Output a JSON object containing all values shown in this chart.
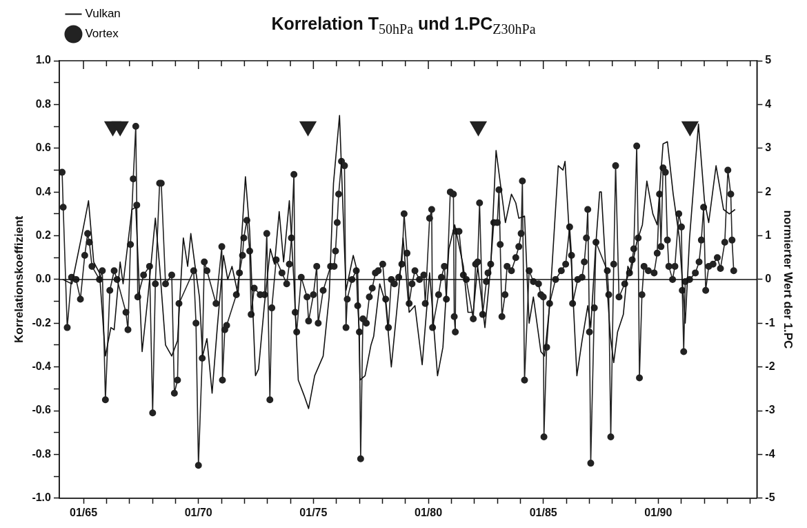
{
  "chart_data": {
    "type": "line",
    "title": "Korrelation T$_{50hPa}$ und 1.PC$_{Z30hPa}$",
    "ylabel": "Korrelationskoeffizient",
    "y2label": "normierter Wert der 1.PC",
    "xlim": [
      "1963-12-13",
      "1994-04-17"
    ],
    "xticks": [
      {
        "value": "1965-01",
        "label": "01/65"
      },
      {
        "value": "1966-01",
        "label": null
      },
      {
        "value": "1967-01",
        "label": null
      },
      {
        "value": "1968-01",
        "label": null
      },
      {
        "value": "1969-01",
        "label": null
      },
      {
        "value": "1970-01",
        "label": "01/70"
      },
      {
        "value": "1971-01",
        "label": null
      },
      {
        "value": "1972-01",
        "label": null
      },
      {
        "value": "1973-01",
        "label": null
      },
      {
        "value": "1974-01",
        "label": null
      },
      {
        "value": "1975-01",
        "label": "01/75"
      },
      {
        "value": "1976-01",
        "label": null
      },
      {
        "value": "1977-01",
        "label": null
      },
      {
        "value": "1978-01",
        "label": null
      },
      {
        "value": "1979-01",
        "label": null
      },
      {
        "value": "1980-01",
        "label": "01/80"
      },
      {
        "value": "1981-01",
        "label": null
      },
      {
        "value": "1982-01",
        "label": null
      },
      {
        "value": "1983-01",
        "label": null
      },
      {
        "value": "1984-01",
        "label": null
      },
      {
        "value": "1985-01",
        "label": "01/85"
      },
      {
        "value": "1986-01",
        "label": null
      },
      {
        "value": "1987-01",
        "label": null
      },
      {
        "value": "1988-01",
        "label": null
      },
      {
        "value": "1989-01",
        "label": null
      },
      {
        "value": "1990-01",
        "label": "01/90"
      },
      {
        "value": "1991-01",
        "label": null
      },
      {
        "value": "1992-01",
        "label": null
      },
      {
        "value": "1993-01",
        "label": null
      },
      {
        "value": "1994-01",
        "label": null
      }
    ],
    "ylim": [
      -1,
      1
    ],
    "yticks": [
      {
        "value": -1,
        "label": "-1.0"
      },
      {
        "value": -0.9,
        "label": null
      },
      {
        "value": -0.8,
        "label": "-0.8"
      },
      {
        "value": -0.7,
        "label": null
      },
      {
        "value": -0.6,
        "label": "-0.6"
      },
      {
        "value": -0.5,
        "label": null
      },
      {
        "value": -0.4,
        "label": "-0.4"
      },
      {
        "value": -0.3,
        "label": null
      },
      {
        "value": -0.2,
        "label": "-0.2"
      },
      {
        "value": -0.1,
        "label": null
      },
      {
        "value": 0,
        "label": "0.0"
      },
      {
        "value": 0.1,
        "label": null
      },
      {
        "value": 0.2,
        "label": "0.2"
      },
      {
        "value": 0.3,
        "label": null
      },
      {
        "value": 0.4,
        "label": "0.4"
      },
      {
        "value": 0.5,
        "label": null
      },
      {
        "value": 0.6,
        "label": "0.6"
      },
      {
        "value": 0.7,
        "label": null
      },
      {
        "value": 0.8,
        "label": "0.8"
      },
      {
        "value": 0.9,
        "label": null
      },
      {
        "value": 1,
        "label": "1.0"
      }
    ],
    "y2lim": [
      -5,
      5
    ],
    "y2ticks": [
      -5,
      -4,
      -3,
      -2,
      -1,
      0,
      1,
      2,
      3,
      4,
      5
    ],
    "legend": "top left",
    "ref_lines": [
      {
        "axis": "y",
        "value": 0
      }
    ],
    "series": [
      {
        "name": "Vulkan",
        "color": "#111111",
        "marker": "none",
        "x": [
          "1964-02-06",
          "1964-07-01",
          "1965-01-01",
          "1965-03-22",
          "1965-06-12",
          "1965-09-12",
          "1965-12-15",
          "1966-03-12",
          "1966-05-03",
          "1966-08-06",
          "1966-09-22",
          "1967-02-09",
          "1967-04-11",
          "1967-07-21",
          "1967-10-21",
          "1968-02-16",
          "1968-04-24",
          "1968-07-27",
          "1968-11-03",
          "1969-02-03",
          "1969-05-06",
          "1969-07-14",
          "1969-09-02",
          "1969-11-09",
          "1970-01-17",
          "1970-03-08",
          "1970-05-16",
          "1970-08-06",
          "1970-10-27",
          "1971-02-03",
          "1971-04-11",
          "1971-06-18",
          "1971-09-22",
          "1972-01-17",
          "1972-03-25",
          "1972-06-25",
          "1972-08-13",
          "1972-11-16",
          "1973-02-16",
          "1973-04-24",
          "1973-07-07",
          "1973-09-15",
          "1973-12-15",
          "1974-02-26",
          "1974-05-06",
          "1974-08-06",
          "1974-10-17",
          "1975-01-21",
          "1975-06-05",
          "1975-09-08",
          "1975-11-16",
          "1976-02-20",
          "1976-04-14",
          "1976-06-02",
          "1976-09-25",
          "1976-12-05",
          "1977-01-11",
          "1977-04-01",
          "1977-07-04",
          "1977-08-16",
          "1977-11-20",
          "1978-02-23",
          "1978-05-23",
          "1978-09-18",
          "1978-11-26",
          "1979-03-02",
          "1979-06-02",
          "1979-09-25",
          "1980-01-21",
          "1980-05-26",
          "1980-08-20",
          "1980-11-23",
          "1981-02-23",
          "1981-07-11",
          "1981-09-22",
          "1981-12-15",
          "1982-02-23",
          "1982-06-18",
          "1982-09-18",
          "1982-12-12",
          "1983-05-09",
          "1983-08-13",
          "1983-10-21",
          "1983-12-08",
          "1984-03-08",
          "1984-05-20",
          "1984-07-27",
          "1984-11-23",
          "1985-01-21",
          "1985-04-11",
          "1985-08-26",
          "1985-11-09",
          "1985-12-12",
          "1986-02-09",
          "1986-03-25",
          "1986-06-18",
          "1986-09-08",
          "1986-12-08",
          "1987-01-24",
          "1987-04-07",
          "1987-06-15",
          "1987-07-11",
          "1987-09-18",
          "1987-12-02",
          "1988-01-24",
          "1988-03-25",
          "1988-06-25",
          "1988-09-05",
          "1988-10-21",
          "1989-01-24",
          "1989-04-24",
          "1989-07-04",
          "1989-10-07",
          "1989-12-15",
          "1990-03-18",
          "1990-05-26",
          "1990-08-26",
          "1990-12-02",
          "1991-03-05",
          "1991-05-13",
          "1991-10-01",
          "1992-01-04",
          "1992-03-12",
          "1992-07-07",
          "1992-11-03",
          "1993-02-03",
          "1993-05-06"
        ],
        "values": [
          0.0,
          -0.02,
          0.24,
          0.36,
          0.08,
          0.03,
          -0.35,
          -0.22,
          -0.23,
          0.08,
          -0.02,
          0.32,
          0.33,
          -0.33,
          -0.08,
          0.28,
          0.06,
          -0.3,
          -0.35,
          -0.28,
          0.19,
          0.06,
          0.21,
          0.06,
          -0.08,
          -0.35,
          -0.27,
          -0.52,
          -0.22,
          0.11,
          0.0,
          0.06,
          -0.07,
          0.47,
          0.22,
          -0.44,
          -0.41,
          -0.11,
          0.14,
          0.07,
          0.31,
          0.08,
          0.36,
          -0.01,
          -0.46,
          -0.53,
          -0.59,
          -0.44,
          -0.35,
          -0.08,
          0.44,
          0.75,
          0.33,
          -0.05,
          0.11,
          0.03,
          -0.46,
          -0.44,
          -0.3,
          -0.26,
          -0.02,
          -0.11,
          -0.4,
          -0.05,
          0.19,
          -0.15,
          -0.12,
          -0.39,
          0.03,
          -0.44,
          -0.31,
          0.14,
          0.25,
          0.06,
          -0.15,
          -0.15,
          0.06,
          -0.22,
          0.06,
          0.59,
          0.26,
          0.39,
          0.35,
          0.28,
          0.29,
          -0.2,
          -0.08,
          -0.33,
          -0.35,
          -0.12,
          0.52,
          0.5,
          0.54,
          0.25,
          0.06,
          -0.44,
          -0.28,
          -0.12,
          -0.22,
          0.13,
          0.4,
          0.4,
          0.06,
          -0.26,
          -0.38,
          -0.24,
          -0.16,
          0.06,
          0.03,
          0.17,
          0.25,
          0.45,
          0.3,
          0.25,
          0.62,
          0.63,
          0.39,
          0.19,
          -0.2,
          0.19,
          0.71,
          0.36,
          0.26,
          0.52,
          0.32,
          0.3,
          0.32
        ]
      },
      {
        "name": "Vortex",
        "axis": "y2",
        "color": "#222222",
        "marker": "circle",
        "x": [
          "1964-01-27",
          "1964-02-13",
          "1964-04-17",
          "1964-06-25",
          "1964-09-05",
          "1964-11-13",
          "1965-01-21",
          "1965-03-08",
          "1965-04-04",
          "1965-05-16",
          "1965-09-12",
          "1965-10-27",
          "1965-12-15",
          "1966-02-23",
          "1966-05-03",
          "1966-06-18",
          "1966-11-06",
          "1966-12-08",
          "1967-01-17",
          "1967-03-02",
          "1967-04-11",
          "1967-04-27",
          "1967-05-13",
          "1967-08-13",
          "1967-11-16",
          "1968-01-04",
          "1968-02-16",
          "1968-04-24",
          "1968-05-20",
          "1968-07-27",
          "1968-11-03",
          "1968-12-15",
          "1969-02-03",
          "1969-02-26",
          "1969-10-17",
          "1969-11-23",
          "1970-01-01",
          "1970-03-02",
          "1970-04-04",
          "1970-05-16",
          "1970-10-07",
          "1971-01-07",
          "1971-01-17",
          "1971-02-23",
          "1971-03-25",
          "1971-08-26",
          "1971-10-14",
          "1971-12-02",
          "1971-12-22",
          "1972-02-09",
          "1972-03-25",
          "1972-04-17",
          "1972-06-05",
          "1972-09-08",
          "1972-11-16",
          "1972-12-22",
          "1973-02-09",
          "1973-03-12",
          "1973-05-20",
          "1973-08-20",
          "1973-11-03",
          "1973-12-15",
          "1974-01-17",
          "1974-02-26",
          "1974-03-18",
          "1974-04-11",
          "1974-06-22",
          "1974-09-22",
          "1974-10-17",
          "1975-01-01",
          "1975-02-23",
          "1975-03-18",
          "1975-06-05",
          "1975-10-01",
          "1975-11-26",
          "1975-12-18",
          "1976-01-14",
          "1976-02-06",
          "1976-03-22",
          "1976-05-09",
          "1976-06-02",
          "1976-06-22",
          "1976-09-05",
          "1976-11-13",
          "1976-12-05",
          "1977-01-01",
          "1977-01-21",
          "1977-02-26",
          "1977-04-21",
          "1977-06-08",
          "1977-07-24",
          "1977-09-12",
          "1977-10-27",
          "1978-01-07",
          "1978-02-23",
          "1978-04-07",
          "1978-05-23",
          "1978-07-11",
          "1978-09-18",
          "1978-11-06",
          "1978-12-12",
          "1979-01-27",
          "1979-03-02",
          "1979-04-17",
          "1979-06-02",
          "1979-08-13",
          "1979-10-21",
          "1979-11-13",
          "1980-01-21",
          "1980-02-23",
          "1980-03-08",
          "1980-06-12",
          "1980-07-27",
          "1980-09-12",
          "1980-10-14",
          "1980-12-15",
          "1981-02-03",
          "1981-02-16",
          "1981-03-05",
          "1981-03-15",
          "1981-05-03",
          "1981-07-11",
          "1981-08-26",
          "1981-12-15",
          "1982-01-21",
          "1982-02-23",
          "1982-03-25",
          "1982-05-13",
          "1982-07-11",
          "1982-08-06",
          "1982-09-18",
          "1982-11-06",
          "1983-01-01",
          "1983-01-27",
          "1983-02-16",
          "1983-03-15",
          "1983-05-03",
          "1983-06-05",
          "1983-08-13",
          "1983-10-21",
          "1983-12-08",
          "1984-01-14",
          "1984-02-03",
          "1984-03-08",
          "1984-05-20",
          "1984-07-27",
          "1984-10-17",
          "1984-11-23",
          "1985-01-01",
          "1985-01-11",
          "1985-02-23",
          "1985-04-11",
          "1985-07-14",
          "1985-10-14",
          "1985-12-22",
          "1986-02-23",
          "1986-03-25",
          "1986-04-11",
          "1986-07-01",
          "1986-09-08",
          "1986-10-14",
          "1986-11-16",
          "1986-12-08",
          "1987-01-04",
          "1987-01-24",
          "1987-03-22",
          "1987-04-17",
          "1987-10-14",
          "1987-11-06",
          "1987-12-08",
          "1988-01-24",
          "1988-02-23",
          "1988-04-17",
          "1988-07-17",
          "1988-10-01",
          "1988-11-13",
          "1988-12-08",
          "1989-01-24",
          "1989-02-16",
          "1989-03-08",
          "1989-04-17",
          "1989-05-20",
          "1989-07-27",
          "1989-10-27",
          "1989-12-15",
          "1990-01-21",
          "1990-02-13",
          "1990-03-18",
          "1990-04-24",
          "1990-05-26",
          "1990-06-18",
          "1990-08-16",
          "1990-09-22",
          "1990-11-23",
          "1991-01-04",
          "1991-01-17",
          "1991-02-09",
          "1991-03-05",
          "1991-05-13",
          "1991-08-13",
          "1991-10-11",
          "1991-11-16",
          "1991-12-22",
          "1992-01-24",
          "1992-03-12",
          "1992-05-20",
          "1992-07-27",
          "1992-09-15",
          "1992-11-23",
          "1993-01-11",
          "1993-02-26",
          "1993-03-18",
          "1993-04-14"
        ],
        "values": [
          2.45,
          1.65,
          -1.1,
          0.05,
          0,
          -0.45,
          0.55,
          1.05,
          0.85,
          0.3,
          0,
          0.2,
          -2.75,
          -0.25,
          0.2,
          0,
          -0.75,
          -1.15,
          0.8,
          2.3,
          3.5,
          1.7,
          -0.4,
          0.1,
          0.3,
          -3.05,
          -0.1,
          2.2,
          2.2,
          -0.1,
          0.1,
          -2.6,
          -2.3,
          -0.55,
          0.2,
          -1.0,
          -4.25,
          -1.8,
          0.4,
          0.2,
          -0.55,
          0.75,
          -2.3,
          -1.15,
          -1.05,
          -0.35,
          0.15,
          0.55,
          0.95,
          1.35,
          0.65,
          -0.8,
          -0.2,
          -0.35,
          -0.35,
          1.05,
          -2.75,
          -0.65,
          0.45,
          0.15,
          -0.1,
          0.35,
          0.95,
          2.4,
          -0.75,
          -1.2,
          0.05,
          -0.4,
          -0.95,
          -0.35,
          0.3,
          -1.0,
          -0.25,
          0.3,
          0.3,
          0.65,
          1.3,
          1.95,
          2.7,
          2.6,
          -1.1,
          -0.45,
          0,
          0.2,
          -0.6,
          -1.2,
          -4.1,
          -0.9,
          -1.0,
          -0.4,
          -0.2,
          0.15,
          0.2,
          0.35,
          -0.45,
          -1.1,
          0,
          -0.1,
          0.05,
          0.35,
          1.5,
          0.6,
          -0.55,
          -0.1,
          0.2,
          0,
          0.1,
          -0.55,
          1.4,
          1.6,
          -1.1,
          -0.35,
          0.05,
          0.3,
          -0.45,
          2.0,
          1.95,
          -0.85,
          -1.2,
          1.1,
          1.1,
          0.1,
          0,
          -0.9,
          0.35,
          0.4,
          1.75,
          -0.8,
          -0.05,
          0.15,
          0.35,
          1.3,
          1.3,
          2.05,
          0.8,
          -0.85,
          -0.35,
          0.3,
          0.2,
          0.5,
          0.75,
          1.05,
          2.25,
          -2.3,
          0.2,
          -0.05,
          -0.1,
          -0.35,
          -0.4,
          -3.6,
          -1.55,
          -0.55,
          0,
          0.2,
          0.35,
          1.2,
          0.55,
          -0.55,
          0,
          0.05,
          0.4,
          0.95,
          1.6,
          -1.2,
          -4.2,
          -0.65,
          0.85,
          0.2,
          -0.35,
          -3.6,
          0.35,
          2.6,
          -0.4,
          -0.1,
          0.15,
          0.45,
          0.7,
          3.05,
          0.95,
          -2.25,
          -0.35,
          0.3,
          0.2,
          0.15,
          0.6,
          1.95,
          0.75,
          2.55,
          2.45,
          0.9,
          0.3,
          0,
          0.3,
          1.5,
          1.2,
          -0.25,
          -1.65,
          -0.05,
          0,
          0.15,
          0.4,
          0.9,
          1.65,
          -0.25,
          0.3,
          0.35,
          0.5,
          0.25,
          0.85,
          2.5,
          1.95,
          0.9,
          0.2
        ]
      },
      {
        "type": "scatter",
        "color": "#222222",
        "marker": "triangle",
        "x": [
          "1966-04-11",
          "1966-08-06",
          "1974-10-07",
          "1982-03-05",
          "1991-05-20"
        ],
        "values": [
          0.7,
          0.7,
          0.7,
          0.7,
          0.7
        ]
      }
    ]
  }
}
